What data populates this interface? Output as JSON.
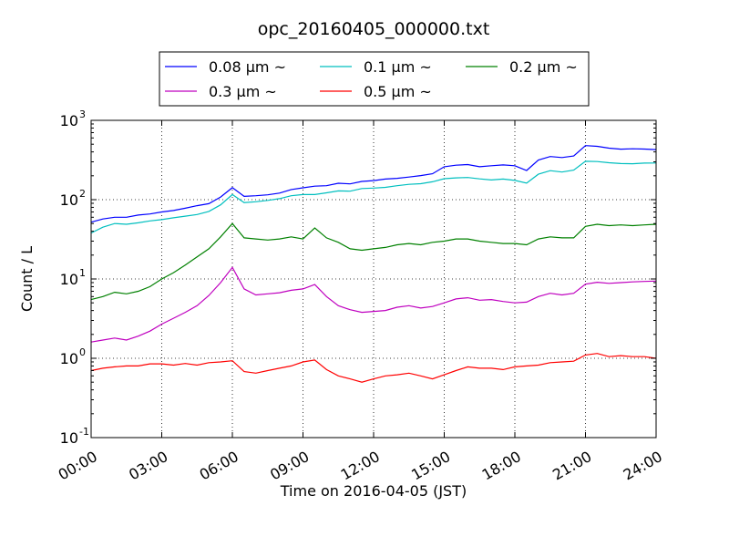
{
  "chart_data": {
    "type": "line",
    "title": "opc_20160405_000000.txt",
    "xlabel": "Time on 2016-04-05 (JST)",
    "ylabel": "Count / L",
    "yscale": "log",
    "ylim": [
      0.1,
      1000
    ],
    "xlim": [
      "00:00",
      "24:00"
    ],
    "grid": true,
    "legend_position": "top-center",
    "x_ticks": [
      "00:00",
      "03:00",
      "06:00",
      "09:00",
      "12:00",
      "15:00",
      "18:00",
      "21:00",
      "24:00"
    ],
    "y_ticks": [
      {
        "base": "10",
        "exp": "-1"
      },
      {
        "base": "10",
        "exp": "0"
      },
      {
        "base": "10",
        "exp": "1"
      },
      {
        "base": "10",
        "exp": "2"
      },
      {
        "base": "10",
        "exp": "3"
      }
    ],
    "x": [
      "00:00",
      "00:30",
      "01:00",
      "01:30",
      "02:00",
      "02:30",
      "03:00",
      "03:30",
      "04:00",
      "04:30",
      "05:00",
      "05:30",
      "06:00",
      "06:30",
      "07:00",
      "07:30",
      "08:00",
      "08:30",
      "09:00",
      "09:30",
      "10:00",
      "10:30",
      "11:00",
      "11:30",
      "12:00",
      "12:30",
      "13:00",
      "13:30",
      "14:00",
      "14:30",
      "15:00",
      "15:30",
      "16:00",
      "16:30",
      "17:00",
      "17:30",
      "18:00",
      "18:30",
      "19:00",
      "19:30",
      "20:00",
      "20:30",
      "21:00",
      "21:30",
      "22:00",
      "22:30",
      "23:00",
      "23:30",
      "24:00"
    ],
    "series": [
      {
        "name": "0.08 µm ~",
        "color": "#0000ff",
        "values": [
          52,
          57,
          60,
          60,
          64,
          66,
          70,
          73,
          78,
          84,
          89,
          108,
          142,
          110,
          112,
          115,
          121,
          134,
          141,
          148,
          150,
          161,
          158,
          170,
          174,
          182,
          186,
          193,
          201,
          212,
          260,
          272,
          277,
          260,
          268,
          274,
          268,
          233,
          316,
          350,
          340,
          355,
          480,
          470,
          446,
          433,
          438,
          434,
          428
        ]
      },
      {
        "name": "0.1 µm ~",
        "color": "#00bfbf",
        "values": [
          38,
          45,
          50,
          49,
          51,
          54,
          56,
          59,
          62,
          65,
          71,
          86,
          116,
          92,
          94,
          98,
          103,
          112,
          116,
          116,
          122,
          129,
          128,
          138,
          140,
          143,
          150,
          156,
          159,
          168,
          184,
          188,
          190,
          183,
          177,
          182,
          175,
          162,
          209,
          232,
          223,
          236,
          305,
          302,
          292,
          285,
          284,
          289,
          290
        ]
      },
      {
        "name": "0.2 µm ~",
        "color": "#008000",
        "values": [
          5.5,
          6,
          6.8,
          6.5,
          7,
          8,
          10,
          12,
          15,
          19,
          24,
          34,
          50,
          33,
          32,
          31,
          32,
          34,
          32,
          44,
          33,
          29,
          24,
          23,
          24,
          25,
          27,
          28,
          27,
          29,
          30,
          32,
          32,
          30,
          29,
          28,
          28,
          27,
          32,
          34,
          33,
          33,
          46,
          49,
          47,
          48,
          47,
          48,
          49
        ]
      },
      {
        "name": "0.3 µm ~",
        "color": "#bf00bf",
        "values": [
          1.6,
          1.7,
          1.8,
          1.7,
          1.9,
          2.2,
          2.7,
          3.2,
          3.8,
          4.6,
          6.2,
          9,
          14,
          7.5,
          6.3,
          6.5,
          6.7,
          7.2,
          7.5,
          8.5,
          6,
          4.6,
          4.1,
          3.8,
          3.9,
          4,
          4.4,
          4.6,
          4.3,
          4.5,
          5,
          5.6,
          5.8,
          5.4,
          5.5,
          5.2,
          5,
          5.1,
          6,
          6.6,
          6.3,
          6.6,
          8.6,
          9.1,
          8.8,
          9,
          9.2,
          9.3,
          9.4
        ]
      },
      {
        "name": "0.5 µm ~",
        "color": "#ff0000",
        "values": [
          0.7,
          0.75,
          0.78,
          0.8,
          0.8,
          0.85,
          0.85,
          0.82,
          0.86,
          0.82,
          0.88,
          0.9,
          0.93,
          0.68,
          0.65,
          0.7,
          0.75,
          0.8,
          0.9,
          0.95,
          0.72,
          0.6,
          0.55,
          0.5,
          0.55,
          0.6,
          0.62,
          0.65,
          0.6,
          0.55,
          0.62,
          0.7,
          0.78,
          0.75,
          0.75,
          0.72,
          0.78,
          0.8,
          0.82,
          0.88,
          0.9,
          0.92,
          1.1,
          1.15,
          1.05,
          1.08,
          1.05,
          1.05,
          1
        ]
      }
    ]
  }
}
